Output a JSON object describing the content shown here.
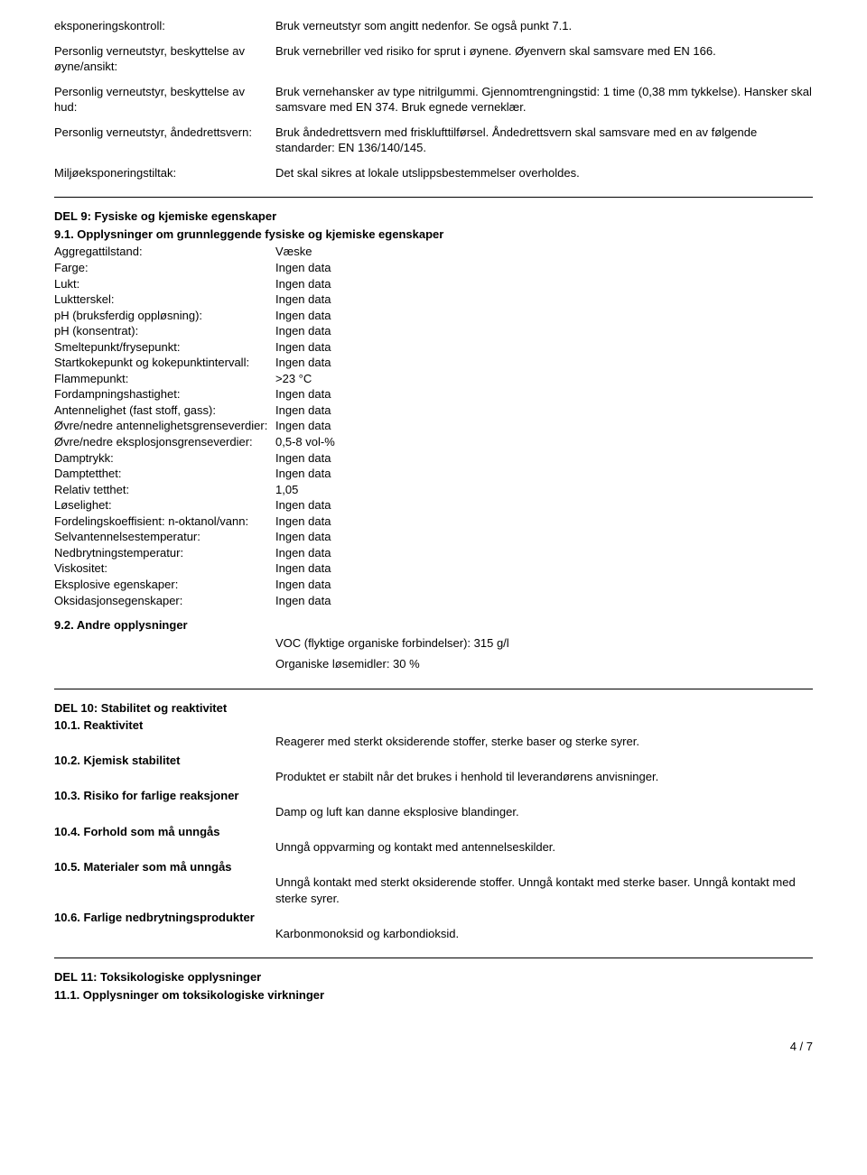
{
  "top": {
    "rows": [
      {
        "left": "eksponeringskontroll:",
        "right": "Bruk verneutstyr som angitt nedenfor.  Se også punkt 7.1."
      },
      {
        "left": "Personlig verneutstyr, beskyttelse av øyne/ansikt:",
        "right": "Bruk vernebriller ved risiko for sprut i øynene.  Øyenvern skal samsvare med EN 166."
      },
      {
        "left": "Personlig verneutstyr, beskyttelse av hud:",
        "right": "Bruk vernehansker av type  nitrilgummi.  Gjennomtrengningstid: 1 time (0,38 mm tykkelse). Hansker skal samsvare med EN 374.  Bruk egnede verneklær."
      },
      {
        "left": "Personlig verneutstyr, åndedrettsvern:",
        "right": "Bruk åndedrettsvern med frisklufttilførsel.  Åndedrettsvern skal samsvare med en av følgende standarder: EN 136/140/145."
      },
      {
        "left": "Miljøeksponeringstiltak:",
        "right": "Det skal sikres at lokale utslippsbestemmelser overholdes."
      }
    ]
  },
  "section9": {
    "title": "DEL 9: Fysiske og kjemiske egenskaper",
    "sub1": "9.1. Opplysninger om grunnleggende fysiske og kjemiske egenskaper",
    "props": [
      {
        "label": "Aggregattilstand:",
        "value": "Væske"
      },
      {
        "label": "Farge:",
        "value": "Ingen data"
      },
      {
        "label": "Lukt:",
        "value": "Ingen data"
      },
      {
        "label": "Luktterskel:",
        "value": "Ingen data"
      },
      {
        "label": "pH (bruksferdig oppløsning):",
        "value": "Ingen data"
      },
      {
        "label": "pH (konsentrat):",
        "value": "Ingen data"
      },
      {
        "label": "Smeltepunkt/frysepunkt:",
        "value": "Ingen data"
      },
      {
        "label": "Startkokepunkt og kokepunktintervall:",
        "value": "Ingen data"
      },
      {
        "label": "Flammepunkt:",
        "value": ">23 °C"
      },
      {
        "label": "Fordampningshastighet:",
        "value": "Ingen data"
      },
      {
        "label": "Antennelighet (fast stoff, gass):",
        "value": "Ingen data"
      },
      {
        "label": "Øvre/nedre antennelighetsgrenseverdier:",
        "value": "Ingen data"
      },
      {
        "label": "Øvre/nedre eksplosjonsgrenseverdier:",
        "value": "0,5-8 vol-%"
      },
      {
        "label": "Damptrykk:",
        "value": "Ingen data"
      },
      {
        "label": "Damptetthet:",
        "value": "Ingen data"
      },
      {
        "label": "Relativ tetthet:",
        "value": "1,05"
      },
      {
        "label": "Løselighet:",
        "value": "Ingen data"
      },
      {
        "label": "Fordelingskoeffisient: n-oktanol/vann:",
        "value": "Ingen data"
      },
      {
        "label": "Selvantennelsestemperatur:",
        "value": "Ingen data"
      },
      {
        "label": "Nedbrytningstemperatur:",
        "value": "Ingen data"
      },
      {
        "label": "Viskositet:",
        "value": "Ingen data"
      },
      {
        "label": "Eksplosive egenskaper:",
        "value": "Ingen data"
      },
      {
        "label": "Oksidasjonsegenskaper:",
        "value": "Ingen data"
      }
    ],
    "sub2": "9.2. Andre opplysninger",
    "other1": "VOC (flyktige organiske forbindelser):  315 g/l",
    "other2": "Organiske løsemidler: 30 %"
  },
  "section10": {
    "title": "DEL 10: Stabilitet og reaktivitet",
    "items": [
      {
        "label": "10.1. Reaktivitet",
        "text": "Reagerer med sterkt oksiderende stoffer, sterke baser og sterke syrer."
      },
      {
        "label": "10.2. Kjemisk stabilitet",
        "text": "Produktet er stabilt når det brukes i henhold til leverandørens anvisninger."
      },
      {
        "label": "10.3. Risiko for farlige reaksjoner",
        "text": "Damp og luft kan danne eksplosive blandinger."
      },
      {
        "label": "10.4. Forhold som må unngås",
        "text": "Unngå oppvarming og kontakt med antennelseskilder."
      },
      {
        "label": "10.5. Materialer som må unngås",
        "text": "Unngå kontakt med sterkt oksiderende stoffer.  Unngå kontakt med sterke baser.  Unngå kontakt med sterke syrer."
      },
      {
        "label": "10.6. Farlige nedbrytningsprodukter",
        "text": "Karbonmonoksid og karbondioksid."
      }
    ]
  },
  "section11": {
    "title": "DEL 11: Toksikologiske opplysninger",
    "sub1": "11.1. Opplysninger om toksikologiske virkninger"
  },
  "footer": "4 / 7"
}
